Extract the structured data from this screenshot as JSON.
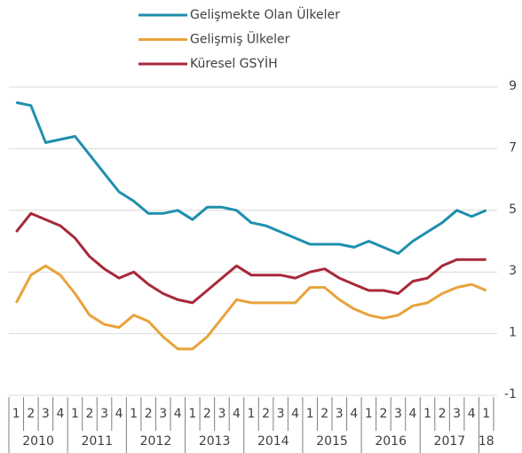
{
  "chart_data": {
    "type": "line",
    "categories": [
      "1",
      "2",
      "3",
      "4",
      "1",
      "2",
      "3",
      "4",
      "1",
      "2",
      "3",
      "4",
      "1",
      "2",
      "3",
      "4",
      "1",
      "2",
      "3",
      "4",
      "1",
      "2",
      "3",
      "4",
      "1",
      "2",
      "3",
      "4",
      "1",
      "2",
      "3",
      "4",
      "1"
    ],
    "year_labels": [
      "2010",
      "2011",
      "2012",
      "2013",
      "2014",
      "2015",
      "2016",
      "2017",
      "18"
    ],
    "series": [
      {
        "name": "Gelişmekte Olan Ülkeler",
        "color": "#1f8fae",
        "values": [
          8.5,
          8.4,
          7.2,
          7.3,
          7.4,
          6.8,
          6.2,
          5.6,
          5.3,
          4.9,
          4.9,
          5.0,
          4.7,
          5.1,
          5.1,
          5.0,
          4.6,
          4.5,
          4.3,
          4.1,
          3.9,
          3.9,
          3.9,
          3.8,
          4.0,
          3.8,
          3.6,
          4.0,
          4.3,
          4.6,
          5.0,
          4.8,
          5.0
        ]
      },
      {
        "name": "Gelişmiş Ülkeler",
        "color": "#e8a33a",
        "values": [
          2.0,
          2.9,
          3.2,
          2.9,
          2.3,
          1.6,
          1.3,
          1.2,
          1.6,
          1.4,
          0.9,
          0.5,
          0.5,
          0.9,
          1.5,
          2.1,
          2.0,
          2.0,
          2.0,
          2.0,
          2.5,
          2.5,
          2.1,
          1.8,
          1.6,
          1.5,
          1.6,
          1.9,
          2.0,
          2.3,
          2.5,
          2.6,
          2.4
        ]
      },
      {
        "name": "Küresel GSYİH",
        "color": "#a8283a",
        "values": [
          4.3,
          4.9,
          4.7,
          4.5,
          4.1,
          3.5,
          3.1,
          2.8,
          3.0,
          2.6,
          2.3,
          2.1,
          2.0,
          2.4,
          2.8,
          3.2,
          2.9,
          2.9,
          2.9,
          2.8,
          3.0,
          3.1,
          2.8,
          2.6,
          2.4,
          2.4,
          2.3,
          2.7,
          2.8,
          3.2,
          3.4,
          3.4,
          3.4
        ]
      }
    ],
    "ylim": [
      -1,
      9
    ],
    "yticks": [
      -1,
      1,
      3,
      5,
      7,
      9
    ],
    "grid": true,
    "legend": "top"
  }
}
